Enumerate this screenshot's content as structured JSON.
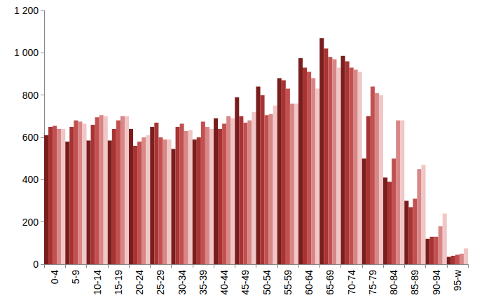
{
  "chart_data": {
    "type": "bar",
    "categories": [
      null,
      null,
      "0-4",
      null,
      null,
      null,
      null,
      "5-9",
      null,
      null,
      null,
      null,
      "10-14",
      null,
      null,
      null,
      null,
      "15-19",
      null,
      null,
      null,
      null,
      "20-24",
      null,
      null,
      null,
      null,
      "25-29",
      null,
      null,
      null,
      null,
      "30-34",
      null,
      null,
      null,
      null,
      "35-39",
      null,
      null,
      null,
      null,
      "40-44",
      null,
      null,
      null,
      null,
      "45-49",
      null,
      null,
      null,
      null,
      "50-54",
      null,
      null,
      null,
      null,
      "55-59",
      null,
      null,
      null,
      null,
      "60-64",
      null,
      null,
      null,
      null,
      "65-69",
      null,
      null,
      null,
      null,
      "70-74",
      null,
      null,
      null,
      null,
      "75-79",
      null,
      null,
      null,
      null,
      "80-84",
      null,
      null,
      null,
      null,
      "85-89",
      null,
      null,
      null,
      null,
      "90-94",
      null,
      null,
      null,
      null,
      "95-w",
      null,
      null
    ],
    "values": [
      610,
      650,
      655,
      640,
      640,
      580,
      650,
      680,
      675,
      665,
      585,
      660,
      695,
      705,
      700,
      585,
      640,
      680,
      700,
      700,
      640,
      560,
      580,
      600,
      610,
      650,
      670,
      600,
      590,
      590,
      545,
      650,
      665,
      630,
      635,
      590,
      600,
      675,
      650,
      640,
      690,
      640,
      665,
      700,
      690,
      790,
      700,
      670,
      680,
      720,
      840,
      800,
      705,
      710,
      750,
      880,
      870,
      830,
      760,
      760,
      975,
      930,
      910,
      880,
      830,
      1070,
      1020,
      980,
      970,
      930,
      985,
      960,
      930,
      920,
      910,
      500,
      700,
      840,
      810,
      800,
      410,
      390,
      500,
      680,
      680,
      300,
      270,
      310,
      450,
      470,
      120,
      130,
      130,
      180,
      240,
      35,
      40,
      45,
      50,
      75
    ],
    "colors": [
      "#7a1d1d",
      "#a83333",
      "#c25050",
      "#d98686",
      "#f0c6c6",
      "#7a1d1d",
      "#a83333",
      "#c25050",
      "#d98686",
      "#f0c6c6",
      "#7a1d1d",
      "#a83333",
      "#c25050",
      "#d98686",
      "#f0c6c6",
      "#7a1d1d",
      "#a83333",
      "#c25050",
      "#d98686",
      "#f0c6c6",
      "#7a1d1d",
      "#a83333",
      "#c25050",
      "#d98686",
      "#f0c6c6",
      "#7a1d1d",
      "#a83333",
      "#c25050",
      "#d98686",
      "#f0c6c6",
      "#7a1d1d",
      "#a83333",
      "#c25050",
      "#d98686",
      "#f0c6c6",
      "#7a1d1d",
      "#a83333",
      "#c25050",
      "#d98686",
      "#f0c6c6",
      "#7a1d1d",
      "#a83333",
      "#c25050",
      "#d98686",
      "#f0c6c6",
      "#7a1d1d",
      "#a83333",
      "#c25050",
      "#d98686",
      "#f0c6c6",
      "#7a1d1d",
      "#a83333",
      "#c25050",
      "#d98686",
      "#f0c6c6",
      "#7a1d1d",
      "#a83333",
      "#c25050",
      "#d98686",
      "#f0c6c6",
      "#7a1d1d",
      "#a83333",
      "#c25050",
      "#d98686",
      "#f0c6c6",
      "#7a1d1d",
      "#a83333",
      "#c25050",
      "#d98686",
      "#f0c6c6",
      "#7a1d1d",
      "#a83333",
      "#c25050",
      "#d98686",
      "#f0c6c6",
      "#7a1d1d",
      "#a83333",
      "#c25050",
      "#d98686",
      "#f0c6c6",
      "#7a1d1d",
      "#a83333",
      "#c25050",
      "#d98686",
      "#f0c6c6",
      "#7a1d1d",
      "#a83333",
      "#c25050",
      "#d98686",
      "#f0c6c6",
      "#7a1d1d",
      "#a83333",
      "#c25050",
      "#d98686",
      "#f0c6c6",
      "#7a1d1d",
      "#a83333",
      "#c25050",
      "#d98686",
      "#f0c6c6"
    ],
    "ylim": [
      0,
      1200
    ],
    "yticks": [
      0,
      200,
      400,
      600,
      800,
      {
        "value": 1000,
        "label": "1 000"
      },
      {
        "value": 1200,
        "label": "1 200"
      }
    ],
    "grid": false
  }
}
